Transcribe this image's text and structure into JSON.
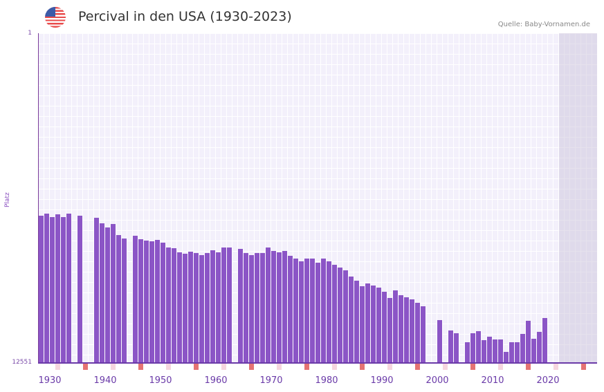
{
  "header": {
    "title": "Percival in den USA (1930-2023)",
    "source": "Quelle: Baby-Vornamen.de",
    "flag_icon": "us-flag-icon"
  },
  "axis": {
    "y_top": "1",
    "y_bottom": "12551",
    "y_label": "Platz",
    "x_ticks": [
      "1930",
      "1940",
      "1950",
      "1960",
      "1970",
      "1980",
      "1990",
      "2000",
      "2010",
      "2020"
    ]
  },
  "colors": {
    "bar": "#8b55c6",
    "axis": "#6a3aa8",
    "decade_marker": "#e57373",
    "half_marker": "#f6d6df"
  },
  "chart_data": {
    "type": "bar",
    "title": "Percival in den USA (1930-2023)",
    "xlabel": "",
    "ylabel": "Platz",
    "ylim": [
      12551,
      1
    ],
    "inverted": true,
    "x": [
      1930,
      1931,
      1932,
      1933,
      1934,
      1935,
      1936,
      1937,
      1938,
      1939,
      1940,
      1941,
      1942,
      1943,
      1944,
      1945,
      1946,
      1947,
      1948,
      1949,
      1950,
      1951,
      1952,
      1953,
      1954,
      1955,
      1956,
      1957,
      1958,
      1959,
      1960,
      1961,
      1962,
      1963,
      1964,
      1965,
      1966,
      1967,
      1968,
      1969,
      1970,
      1971,
      1972,
      1973,
      1974,
      1975,
      1976,
      1977,
      1978,
      1979,
      1980,
      1981,
      1982,
      1983,
      1984,
      1985,
      1986,
      1987,
      1988,
      1989,
      1990,
      1991,
      1992,
      1993,
      1994,
      1995,
      1996,
      1997,
      1998,
      1999,
      2000,
      2001,
      2002,
      2003,
      2004,
      2005,
      2006,
      2007,
      2008,
      2009,
      2010,
      2011,
      2012,
      2013,
      2014,
      2015,
      2016,
      2017,
      2018,
      2019,
      2020,
      2021,
      2022,
      2023
    ],
    "values": [
      6950,
      6870,
      7000,
      6900,
      6990,
      6870,
      null,
      6950,
      null,
      null,
      7020,
      7230,
      7400,
      7250,
      7680,
      7820,
      null,
      7710,
      7830,
      7900,
      7920,
      7880,
      7970,
      8150,
      8180,
      8330,
      8400,
      8320,
      8360,
      8450,
      8380,
      8270,
      8350,
      8150,
      8170,
      null,
      8200,
      8360,
      8450,
      8380,
      8380,
      8160,
      8300,
      8350,
      8280,
      8460,
      8570,
      8680,
      8590,
      8590,
      8740,
      8570,
      8690,
      8820,
      8920,
      9030,
      9250,
      9430,
      9620,
      9530,
      9600,
      9680,
      9830,
      10070,
      9780,
      9960,
      10050,
      10130,
      10270,
      10400,
      null,
      null,
      10920,
      null,
      11310,
      11420,
      null,
      11760,
      11420,
      11330,
      11680,
      11540,
      11660,
      11660,
      12120,
      11760,
      11760,
      11440,
      10940,
      11630,
      11380,
      10830,
      null,
      null
    ]
  }
}
